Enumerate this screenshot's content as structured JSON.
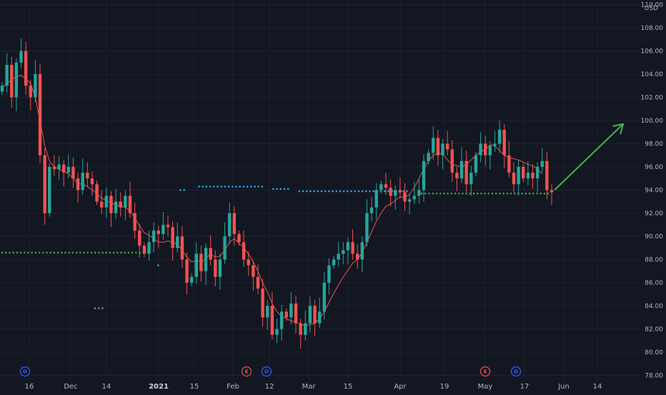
{
  "colors": {
    "background": "#131722",
    "grid": "#1e222d",
    "up_candle": "#26a69a",
    "down_candle": "#ef5350",
    "moving_average": "#ef5350",
    "support_line_cyan": "#29b6f6",
    "support_line_green": "#4caf50",
    "arrow": "#4caf50",
    "axis_text": "#b2b5be",
    "event_earnings": "#ef5350",
    "event_dividend": "#2962ff"
  },
  "chart_data": {
    "type": "candlestick",
    "currency": "USD",
    "ylim": [
      77.6,
      110.4
    ],
    "y_ticks": [
      "110.00",
      "108.00",
      "106.00",
      "104.00",
      "102.00",
      "100.00",
      "98.00",
      "96.00",
      "94.00",
      "92.00",
      "90.00",
      "88.00",
      "86.00",
      "84.00",
      "82.00",
      "80.00",
      "78.00"
    ],
    "x_ticks": [
      {
        "label": "16",
        "bold": false
      },
      {
        "label": "Dec",
        "bold": false
      },
      {
        "label": "14",
        "bold": false
      },
      {
        "label": "2021",
        "bold": true
      },
      {
        "label": "15",
        "bold": false
      },
      {
        "label": "Feb",
        "bold": false
      },
      {
        "label": "12",
        "bold": false
      },
      {
        "label": "Mar",
        "bold": false
      },
      {
        "label": "15",
        "bold": false
      },
      {
        "label": "Apr",
        "bold": false
      },
      {
        "label": "19",
        "bold": false
      },
      {
        "label": "May",
        "bold": false
      },
      {
        "label": "17",
        "bold": false
      },
      {
        "label": "Jun",
        "bold": false
      },
      {
        "label": "14",
        "bold": false
      }
    ],
    "closes": [
      103.0,
      104.8,
      102.0,
      105.0,
      106.0,
      103.0,
      102.0,
      104.0,
      97.0,
      92.0,
      96.0,
      95.8,
      96.2,
      95.5,
      96.0,
      95.0,
      94.0,
      95.5,
      95.0,
      94.5,
      93.0,
      92.5,
      93.5,
      92.0,
      93.0,
      92.5,
      93.5,
      92.0,
      90.5,
      89.2,
      88.5,
      89.5,
      90.5,
      90.2,
      91.0,
      90.8,
      89.0,
      90.0,
      88.0,
      86.0,
      86.5,
      88.5,
      87.0,
      89.0,
      88.0,
      86.5,
      88.0,
      90.0,
      92.0,
      90.2,
      89.5,
      88.0,
      87.5,
      86.5,
      85.5,
      83.0,
      84.0,
      81.5,
      82.0,
      83.5,
      83.0,
      84.2,
      82.5,
      81.5,
      82.5,
      84.0,
      82.5,
      83.5,
      86.0,
      87.5,
      88.0,
      88.5,
      88.8,
      89.5,
      88.5,
      88.0,
      89.5,
      92.0,
      92.5,
      94.0,
      94.5,
      94.2,
      93.5,
      94.0,
      93.8,
      93.0,
      93.2,
      93.5,
      94.0,
      96.5,
      97.2,
      98.5,
      97.0,
      98.0,
      97.5,
      95.5,
      95.0,
      96.5,
      94.5,
      95.5,
      97.0,
      98.0,
      97.0,
      97.8,
      98.0,
      99.2,
      97.0,
      95.5,
      94.5,
      96.0,
      95.0,
      95.5,
      95.0,
      96.0,
      96.5,
      94.0,
      93.8
    ],
    "moving_average": [
      102.8,
      103.2,
      103.5,
      103.8,
      103.9,
      103.6,
      103.2,
      102.0,
      100.0,
      97.8,
      96.5,
      96.0,
      95.8,
      95.6,
      95.4,
      95.0,
      94.6,
      94.5,
      94.3,
      94.0,
      93.7,
      93.3,
      93.1,
      92.9,
      92.7,
      92.6,
      92.5,
      92.2,
      91.6,
      90.9,
      90.3,
      90.1,
      89.8,
      89.5,
      89.5,
      89.6,
      89.5,
      89.3,
      88.8,
      88.2,
      87.8,
      87.9,
      87.8,
      88.1,
      88.5,
      88.2,
      88.3,
      88.8,
      89.5,
      89.8,
      89.4,
      89.0,
      88.5,
      87.8,
      87.0,
      86.0,
      85.2,
      84.2,
      83.5,
      83.1,
      82.9,
      82.7,
      82.6,
      82.4,
      82.3,
      82.4,
      82.5,
      82.9,
      83.5,
      84.3,
      85.1,
      85.8,
      86.5,
      87.1,
      87.7,
      88.0,
      88.6,
      89.5,
      90.4,
      91.3,
      92.0,
      92.6,
      92.8,
      93.1,
      93.4,
      93.4,
      93.6,
      94.2,
      95.0,
      95.8,
      96.5,
      97.0,
      97.2,
      97.1,
      96.6,
      96.2,
      96.1,
      96.0,
      96.2,
      96.6,
      97.0,
      97.3,
      97.5,
      97.9,
      97.8,
      97.4,
      97.0,
      96.8,
      96.7,
      96.6,
      96.4,
      96.2,
      96.1,
      95.8,
      95.4
    ],
    "support_levels": [
      {
        "name": "cyan-1",
        "value": 94.0,
        "color": "#29b6f6",
        "from": 48,
        "to": 50
      },
      {
        "name": "cyan-2",
        "value": 94.3,
        "color": "#29b6f6",
        "from": 53,
        "to": 71
      },
      {
        "name": "cyan-3",
        "value": 94.1,
        "color": "#29b6f6",
        "from": 73,
        "to": 78
      },
      {
        "name": "cyan-4",
        "value": 93.9,
        "color": "#29b6f6",
        "from": 80,
        "to": 110
      },
      {
        "name": "green-main",
        "value": 88.6,
        "color": "#4caf50",
        "from": 0,
        "to": 39
      },
      {
        "name": "green-right",
        "value": 93.7,
        "color": "#4caf50",
        "from": 113,
        "to": 148
      },
      {
        "name": "cyan-low",
        "value": 87.5,
        "color": "#29b6f6",
        "from": 42,
        "to": 43
      },
      {
        "name": "gray-low",
        "value": 83.8,
        "color": "#9598a1",
        "from": 25,
        "to": 28
      }
    ],
    "events": [
      {
        "type": "dividend",
        "letter": "D",
        "index": 6
      },
      {
        "type": "earnings",
        "letter": "E",
        "index": 64
      },
      {
        "type": "dividend",
        "letter": "D",
        "index": 70
      },
      {
        "type": "earnings",
        "letter": "E",
        "index": 128
      },
      {
        "type": "dividend",
        "letter": "D",
        "index": 137
      }
    ],
    "arrow": {
      "from_index": 148,
      "from_value": 94.0,
      "to_index": 166,
      "to_value": 99.8
    }
  }
}
